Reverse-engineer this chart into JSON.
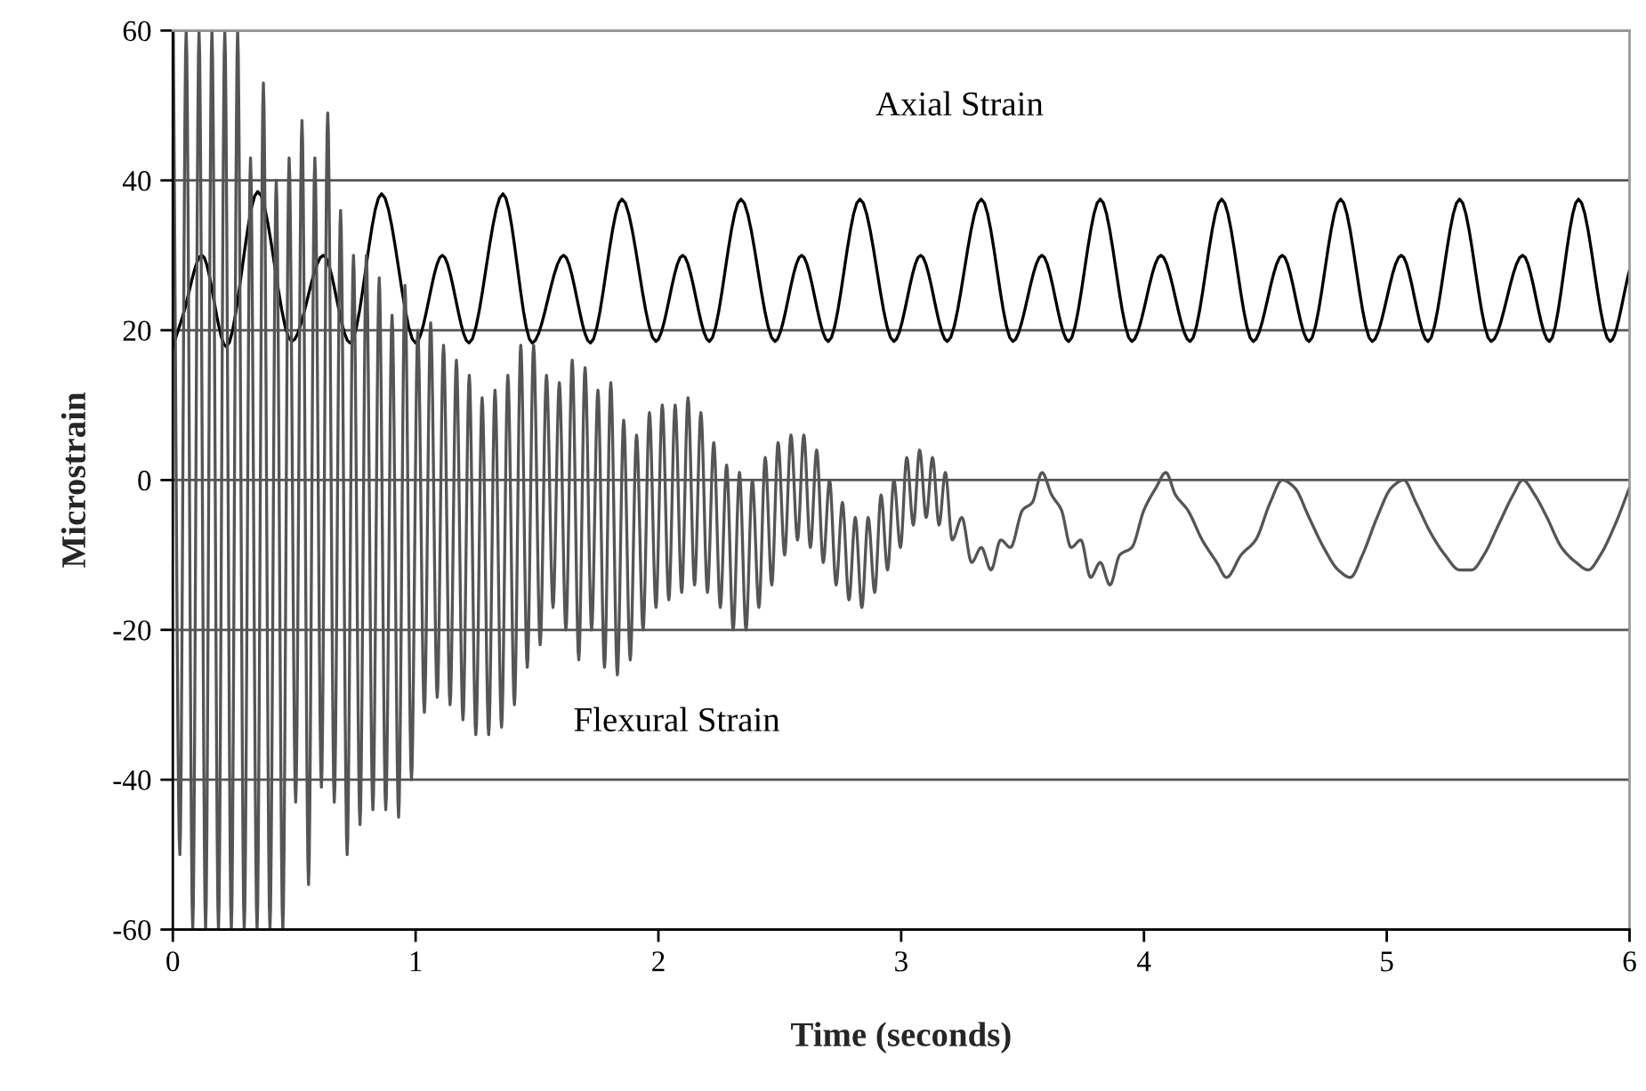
{
  "chart_data": {
    "type": "line",
    "xlabel": "Time (seconds)",
    "ylabel": "Microstrain",
    "xlim": [
      0,
      6
    ],
    "xticks": [
      0,
      1,
      2,
      3,
      4,
      5,
      6
    ],
    "ylim": [
      -60,
      60
    ],
    "yticks": [
      -60,
      -40,
      -20,
      0,
      20,
      40,
      60
    ],
    "grid": "y",
    "legend": false,
    "marker": "none",
    "line_style": "solid",
    "series": [
      {
        "name": "Axial Strain",
        "color": "#000000",
        "x": [
          0,
          0.04,
          0.12,
          0.22,
          0.35,
          0.49,
          0.62,
          0.73,
          0.86,
          1.0,
          1.11,
          1.22,
          1.36,
          1.48,
          1.61,
          1.72,
          1.85,
          1.99,
          2.1,
          2.21,
          2.34,
          2.48,
          2.59,
          2.7,
          2.83,
          2.97,
          3.08,
          3.19,
          3.33,
          3.46,
          3.58,
          3.69,
          3.82,
          3.95,
          4.07,
          4.19,
          4.32,
          4.45,
          4.57,
          4.68,
          4.81,
          4.94,
          5.06,
          5.17,
          5.3,
          5.43,
          5.56,
          5.67,
          5.79,
          5.92,
          6.0
        ],
        "values": [
          17.8,
          21.8,
          30,
          17.8,
          38.5,
          18.5,
          30,
          18.3,
          38.2,
          18.3,
          30,
          18.3,
          38.2,
          18.3,
          30,
          18.3,
          37.5,
          18.5,
          30,
          18.5,
          37.5,
          18.5,
          30,
          18.5,
          37.5,
          18.5,
          30,
          18.5,
          37.5,
          18.5,
          30,
          18.5,
          37.5,
          18.5,
          30,
          18.5,
          37.5,
          18.5,
          30,
          18.5,
          37.5,
          18.5,
          30,
          18.5,
          37.5,
          18.5,
          30,
          18.5,
          37.5,
          18.5,
          28
        ]
      },
      {
        "name": "Flexural Strain",
        "color": "#555555",
        "x": [
          0.002,
          0.029,
          0.055,
          0.082,
          0.108,
          0.135,
          0.161,
          0.188,
          0.214,
          0.241,
          0.267,
          0.294,
          0.32,
          0.347,
          0.373,
          0.4,
          0.426,
          0.453,
          0.479,
          0.506,
          0.532,
          0.559,
          0.585,
          0.612,
          0.638,
          0.665,
          0.691,
          0.718,
          0.744,
          0.771,
          0.797,
          0.824,
          0.85,
          0.877,
          0.903,
          0.93,
          0.956,
          0.983,
          1.009,
          1.036,
          1.062,
          1.089,
          1.115,
          1.142,
          1.168,
          1.195,
          1.221,
          1.248,
          1.274,
          1.301,
          1.327,
          1.354,
          1.38,
          1.407,
          1.433,
          1.46,
          1.486,
          1.513,
          1.539,
          1.566,
          1.592,
          1.619,
          1.645,
          1.672,
          1.698,
          1.725,
          1.751,
          1.778,
          1.804,
          1.831,
          1.857,
          1.884,
          1.91,
          1.937,
          1.963,
          1.99,
          2.016,
          2.043,
          2.069,
          2.096,
          2.122,
          2.149,
          2.175,
          2.202,
          2.228,
          2.255,
          2.281,
          2.308,
          2.334,
          2.361,
          2.387,
          2.414,
          2.44,
          2.467,
          2.493,
          2.52,
          2.546,
          2.573,
          2.599,
          2.626,
          2.652,
          2.679,
          2.705,
          2.732,
          2.758,
          2.785,
          2.811,
          2.838,
          2.864,
          2.891,
          2.917,
          2.944,
          2.97,
          2.997,
          3.023,
          3.05,
          3.076,
          3.103,
          3.129,
          3.156,
          3.182,
          3.21,
          3.25,
          3.29,
          3.33,
          3.37,
          3.41,
          3.45,
          3.5,
          3.54,
          3.58,
          3.62,
          3.66,
          3.7,
          3.74,
          3.78,
          3.82,
          3.86,
          3.9,
          3.95,
          4.0,
          4.05,
          4.09,
          4.13,
          4.18,
          4.24,
          4.3,
          4.34,
          4.4,
          4.46,
          4.52,
          4.57,
          4.62,
          4.68,
          4.74,
          4.8,
          4.85,
          4.9,
          4.96,
          5.02,
          5.07,
          5.12,
          5.18,
          5.24,
          5.3,
          5.35,
          5.4,
          5.46,
          5.52,
          5.56,
          5.61,
          5.66,
          5.72,
          5.78,
          5.83,
          5.88,
          5.94,
          6.0
        ],
        "values": [
          60,
          -50,
          60,
          -60,
          60,
          -60,
          60,
          -60,
          60,
          -60,
          60,
          -60,
          43,
          -60,
          53,
          -60,
          40,
          -60,
          43,
          -43,
          48,
          -54,
          43,
          -41,
          49,
          -43,
          36,
          -50,
          30,
          -46,
          30,
          -44,
          27,
          -44,
          22,
          -45,
          26,
          -40,
          20,
          -31,
          21,
          -29,
          18,
          -30,
          16,
          -32,
          14,
          -34,
          11,
          -34,
          12,
          -33,
          14,
          -30,
          18,
          -25,
          18,
          -22,
          14,
          -17,
          13,
          -20,
          16,
          -24,
          15,
          -20,
          12,
          -25,
          13,
          -26,
          8,
          -24,
          6,
          -20,
          9,
          -17,
          10,
          -16,
          10,
          -15,
          11,
          -14,
          9,
          -15,
          5,
          -17,
          2,
          -20,
          1,
          -20,
          0,
          -17,
          3,
          -14,
          5,
          -10,
          6,
          -8,
          6,
          -9,
          4,
          -11,
          0,
          -14,
          -3,
          -16,
          -5,
          -17,
          -5,
          -15,
          -2,
          -12,
          0,
          -9,
          3,
          -6,
          4,
          -5,
          3,
          -6,
          1,
          -8,
          -5,
          -11,
          -9,
          -12,
          -8,
          -9,
          -4,
          -3,
          1,
          -2,
          -4,
          -9,
          -8,
          -13,
          -11,
          -14,
          -10,
          -9,
          -4,
          -1,
          1,
          -2,
          -4,
          -8,
          -11,
          -13,
          -10,
          -8,
          -3,
          0,
          -1,
          -5,
          -9,
          -12,
          -13,
          -10,
          -5,
          -1,
          0,
          -3,
          -7,
          -10,
          -12,
          -12,
          -10,
          -6,
          -2,
          0,
          -2,
          -5,
          -9,
          -11,
          -12,
          -10,
          -6,
          -1
        ]
      }
    ]
  }
}
